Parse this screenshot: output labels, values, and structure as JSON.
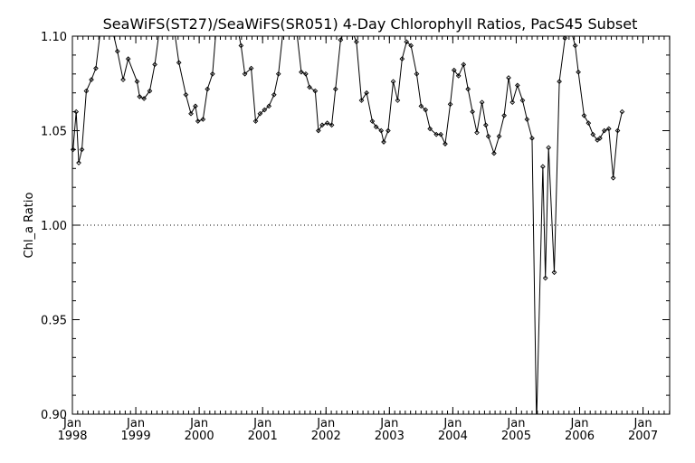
{
  "chart_data": {
    "type": "line",
    "title": "SeaWiFS(ST27)/SeaWiFS(SR051) 4-Day Chlorophyll Ratios, PacS45 Subset",
    "xlabel": "",
    "ylabel": "Chl_a Ratio",
    "ylim": [
      0.9,
      1.1
    ],
    "xlim": [
      1998.0,
      2007.42
    ],
    "y_ticks": [
      "0.90",
      "0.95",
      "1.00",
      "1.05",
      "1.10"
    ],
    "x_ticks": [
      {
        "month": "Jan",
        "year": "1998"
      },
      {
        "month": "Jan",
        "year": "1999"
      },
      {
        "month": "Jan",
        "year": "2000"
      },
      {
        "month": "Jan",
        "year": "2001"
      },
      {
        "month": "Jan",
        "year": "2002"
      },
      {
        "month": "Jan",
        "year": "2003"
      },
      {
        "month": "Jan",
        "year": "2004"
      },
      {
        "month": "Jan",
        "year": "2005"
      },
      {
        "month": "Jan",
        "year": "2006"
      },
      {
        "month": "Jan",
        "year": "2007"
      }
    ],
    "reference_line": {
      "y": 1.0,
      "style": "dotted"
    },
    "grid": false,
    "series": [
      {
        "color": "#000000",
        "marker": "diamond",
        "points": [
          [
            1998.01,
            1.04
          ],
          [
            1998.06,
            1.06
          ],
          [
            1998.1,
            1.033
          ],
          [
            1998.15,
            1.04
          ],
          [
            1998.22,
            1.071
          ],
          [
            1998.3,
            1.077
          ],
          [
            1998.37,
            1.083
          ],
          [
            1998.45,
            1.105
          ],
          [
            1998.62,
            1.105
          ],
          [
            1998.71,
            1.092
          ],
          [
            1998.8,
            1.077
          ],
          [
            1998.88,
            1.088
          ],
          [
            1999.02,
            1.076
          ],
          [
            1999.06,
            1.068
          ],
          [
            1999.13,
            1.067
          ],
          [
            1999.22,
            1.071
          ],
          [
            1999.3,
            1.085
          ],
          [
            1999.38,
            1.105
          ],
          [
            1999.6,
            1.105
          ],
          [
            1999.68,
            1.086
          ],
          [
            1999.79,
            1.069
          ],
          [
            1999.87,
            1.059
          ],
          [
            1999.94,
            1.063
          ],
          [
            1999.98,
            1.055
          ],
          [
            2000.06,
            1.056
          ],
          [
            2000.13,
            1.072
          ],
          [
            2000.21,
            1.08
          ],
          [
            2000.27,
            1.105
          ],
          [
            2000.6,
            1.105
          ],
          [
            2000.66,
            1.095
          ],
          [
            2000.72,
            1.08
          ],
          [
            2000.82,
            1.083
          ],
          [
            2000.89,
            1.055
          ],
          [
            2000.96,
            1.059
          ],
          [
            2001.03,
            1.061
          ],
          [
            2001.1,
            1.063
          ],
          [
            2001.18,
            1.069
          ],
          [
            2001.25,
            1.08
          ],
          [
            2001.33,
            1.105
          ],
          [
            2001.53,
            1.105
          ],
          [
            2001.61,
            1.081
          ],
          [
            2001.68,
            1.08
          ],
          [
            2001.74,
            1.073
          ],
          [
            2001.83,
            1.071
          ],
          [
            2001.88,
            1.05
          ],
          [
            2001.94,
            1.053
          ],
          [
            2002.02,
            1.054
          ],
          [
            2002.09,
            1.053
          ],
          [
            2002.15,
            1.072
          ],
          [
            2002.23,
            1.098
          ],
          [
            2002.3,
            1.105
          ],
          [
            2002.42,
            1.102
          ],
          [
            2002.48,
            1.097
          ],
          [
            2002.56,
            1.066
          ],
          [
            2002.64,
            1.07
          ],
          [
            2002.73,
            1.055
          ],
          [
            2002.79,
            1.052
          ],
          [
            2002.87,
            1.05
          ],
          [
            2002.91,
            1.044
          ],
          [
            2002.98,
            1.05
          ],
          [
            2003.06,
            1.076
          ],
          [
            2003.13,
            1.066
          ],
          [
            2003.2,
            1.088
          ],
          [
            2003.27,
            1.097
          ],
          [
            2003.34,
            1.095
          ],
          [
            2003.43,
            1.08
          ],
          [
            2003.5,
            1.063
          ],
          [
            2003.57,
            1.061
          ],
          [
            2003.64,
            1.051
          ],
          [
            2003.74,
            1.048
          ],
          [
            2003.81,
            1.048
          ],
          [
            2003.88,
            1.043
          ],
          [
            2003.96,
            1.064
          ],
          [
            2004.02,
            1.082
          ],
          [
            2004.09,
            1.079
          ],
          [
            2004.17,
            1.085
          ],
          [
            2004.24,
            1.072
          ],
          [
            2004.31,
            1.06
          ],
          [
            2004.38,
            1.049
          ],
          [
            2004.46,
            1.065
          ],
          [
            2004.52,
            1.053
          ],
          [
            2004.56,
            1.047
          ],
          [
            2004.65,
            1.038
          ],
          [
            2004.73,
            1.047
          ],
          [
            2004.81,
            1.058
          ],
          [
            2004.88,
            1.078
          ],
          [
            2004.94,
            1.065
          ],
          [
            2005.02,
            1.074
          ],
          [
            2005.1,
            1.066
          ],
          [
            2005.17,
            1.056
          ],
          [
            2005.25,
            1.046
          ],
          [
            2005.32,
            0.895
          ],
          [
            2005.42,
            1.031
          ],
          [
            2005.46,
            0.972
          ],
          [
            2005.51,
            1.041
          ],
          [
            2005.6,
            0.975
          ],
          [
            2005.68,
            1.076
          ],
          [
            2005.77,
            1.099
          ],
          [
            2005.85,
            1.105
          ],
          [
            2005.93,
            1.095
          ],
          [
            2005.98,
            1.081
          ],
          [
            2006.07,
            1.058
          ],
          [
            2006.14,
            1.054
          ],
          [
            2006.21,
            1.048
          ],
          [
            2006.28,
            1.045
          ],
          [
            2006.32,
            1.046
          ],
          [
            2006.39,
            1.05
          ],
          [
            2006.46,
            1.051
          ],
          [
            2006.53,
            1.025
          ],
          [
            2006.6,
            1.05
          ],
          [
            2006.67,
            1.06
          ]
        ]
      }
    ]
  }
}
